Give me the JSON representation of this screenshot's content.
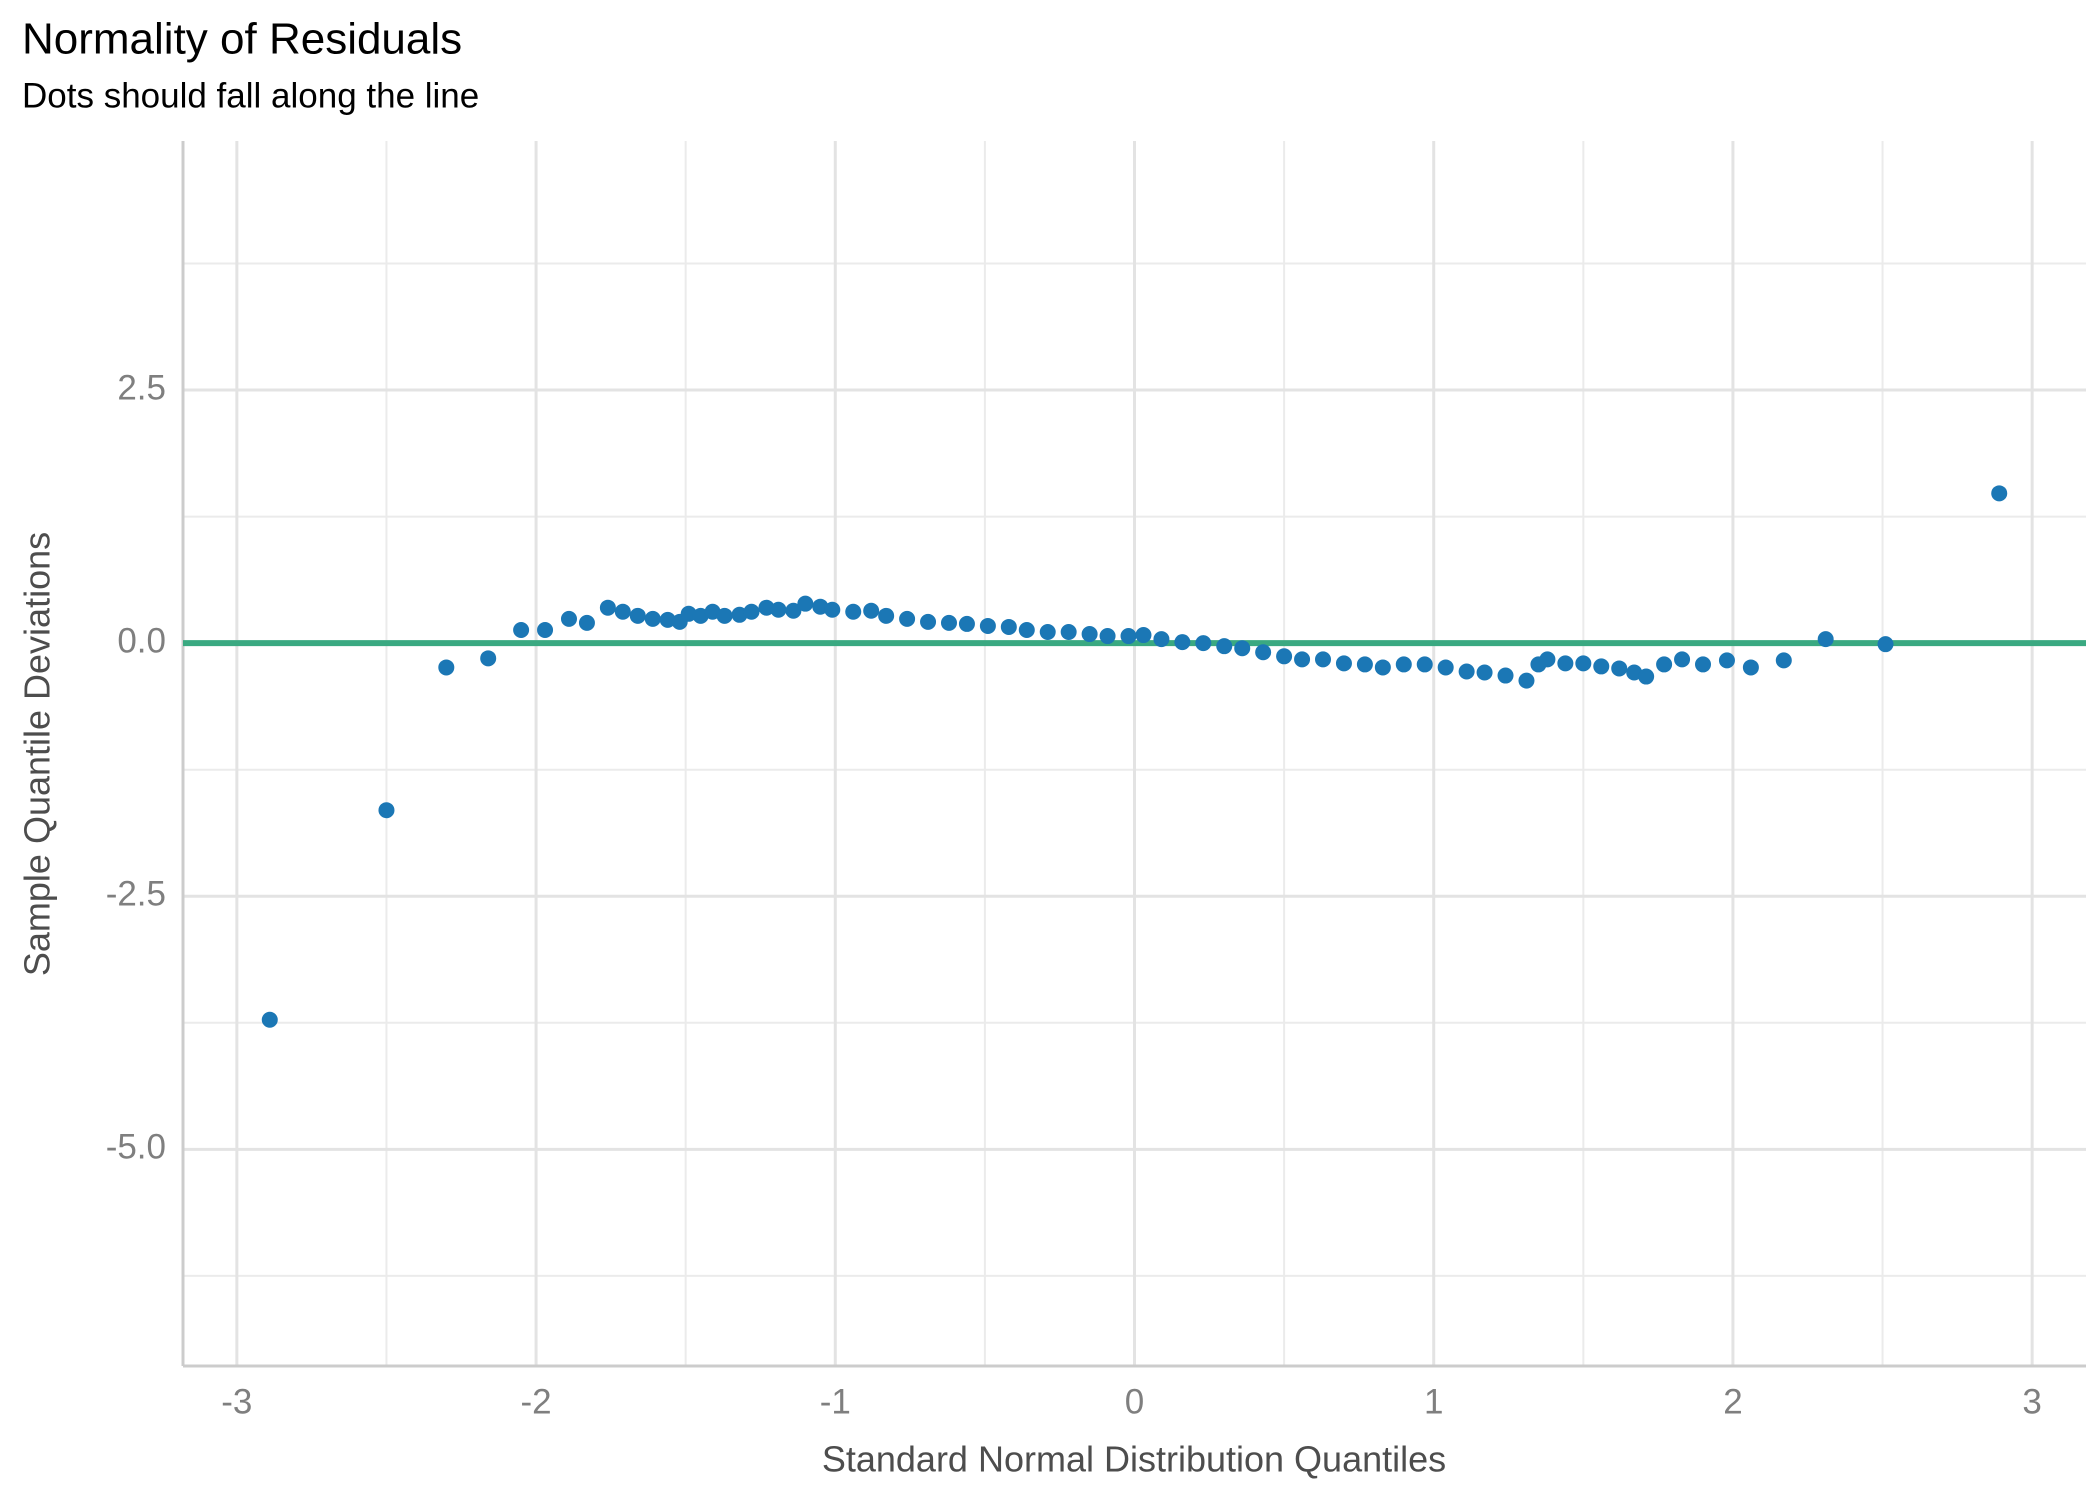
{
  "chart_data": {
    "type": "scatter",
    "title": "Normality of Residuals",
    "subtitle": "Dots should fall along the line",
    "x_label": "Standard Normal Distribution Quantiles",
    "y_label": "Sample Quantile Deviations",
    "xlim": [
      -3.18,
      3.18
    ],
    "ylim": [
      -7.14,
      4.96
    ],
    "xticks": [
      -3,
      -2,
      -1,
      0,
      1,
      2,
      3
    ],
    "yticks": [
      -5.0,
      -2.5,
      0.0,
      2.5
    ],
    "ytick_labels": [
      "-5.0",
      "-2.5",
      "0.0",
      "2.5"
    ],
    "grid": true,
    "reference_line": 0,
    "reference_color": "#3aa981",
    "series": [
      {
        "color": "#1b77b5",
        "x": [
          -2.89,
          -2.5,
          -2.3,
          -2.16,
          -2.05,
          -1.97,
          -1.89,
          -1.83,
          -1.76,
          -1.71,
          -1.66,
          -1.61,
          -1.56,
          -1.52,
          -1.49,
          -1.45,
          -1.41,
          -1.37,
          -1.32,
          -1.28,
          -1.23,
          -1.19,
          -1.14,
          -1.1,
          -1.05,
          -1.01,
          -0.94,
          -0.88,
          -0.83,
          -0.76,
          -0.69,
          -0.62,
          -0.56,
          -0.49,
          -0.42,
          -0.36,
          -0.29,
          -0.22,
          -0.15,
          -0.09,
          -0.02,
          0.03,
          0.09,
          0.16,
          0.23,
          0.3,
          0.36,
          0.43,
          0.5,
          0.56,
          0.63,
          0.7,
          0.77,
          0.83,
          0.9,
          0.97,
          1.04,
          1.11,
          1.17,
          1.24,
          1.31,
          1.35,
          1.38,
          1.44,
          1.5,
          1.56,
          1.62,
          1.67,
          1.71,
          1.77,
          1.83,
          1.9,
          1.98,
          2.06,
          2.17,
          2.31,
          2.51,
          2.89
        ],
        "values": [
          -3.72,
          -1.65,
          -0.24,
          -0.15,
          0.13,
          0.13,
          0.24,
          0.2,
          0.35,
          0.31,
          0.27,
          0.24,
          0.23,
          0.21,
          0.29,
          0.27,
          0.31,
          0.27,
          0.28,
          0.31,
          0.35,
          0.33,
          0.32,
          0.39,
          0.36,
          0.33,
          0.31,
          0.32,
          0.27,
          0.24,
          0.21,
          0.2,
          0.19,
          0.17,
          0.16,
          0.13,
          0.11,
          0.11,
          0.09,
          0.07,
          0.07,
          0.08,
          0.04,
          0.01,
          0.0,
          -0.03,
          -0.05,
          -0.09,
          -0.13,
          -0.16,
          -0.16,
          -0.2,
          -0.21,
          -0.24,
          -0.21,
          -0.21,
          -0.24,
          -0.28,
          -0.29,
          -0.32,
          -0.37,
          -0.21,
          -0.16,
          -0.2,
          -0.2,
          -0.23,
          -0.25,
          -0.29,
          -0.33,
          -0.21,
          -0.16,
          -0.21,
          -0.17,
          -0.24,
          -0.17,
          0.04,
          -0.01,
          1.48
        ]
      }
    ]
  }
}
